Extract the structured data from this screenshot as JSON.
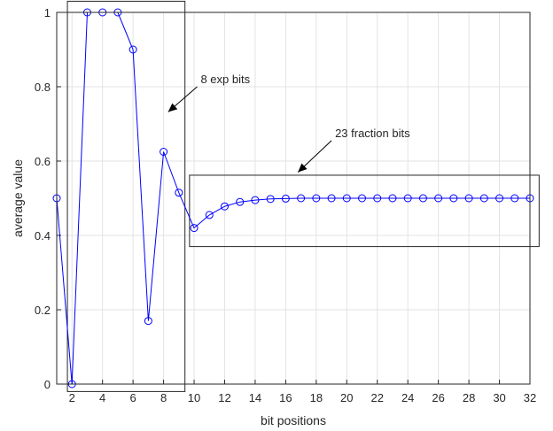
{
  "chart_data": {
    "type": "line",
    "xlabel": "bit positions",
    "ylabel": "average value",
    "xlim": [
      1,
      32
    ],
    "ylim": [
      0,
      1
    ],
    "xticks": [
      2,
      4,
      6,
      8,
      10,
      12,
      14,
      16,
      18,
      20,
      22,
      24,
      26,
      28,
      30,
      32
    ],
    "yticks": [
      0,
      0.2,
      0.4,
      0.6,
      0.8,
      1
    ],
    "grid": true,
    "marker": "circle",
    "line_color": "#0000ff",
    "series": [
      {
        "x": [
          1,
          2,
          3,
          4,
          5,
          6,
          7,
          8,
          9,
          10,
          11,
          12,
          13,
          14,
          15,
          16,
          17,
          18,
          19,
          20,
          21,
          22,
          23,
          24,
          25,
          26,
          27,
          28,
          29,
          30,
          31,
          32
        ],
        "values": [
          0.5,
          0.0,
          1.0,
          1.0,
          1.0,
          0.9,
          0.17,
          0.625,
          0.515,
          0.42,
          0.455,
          0.478,
          0.49,
          0.495,
          0.498,
          0.499,
          0.5,
          0.5,
          0.5,
          0.5,
          0.5,
          0.5,
          0.5,
          0.5,
          0.5,
          0.5,
          0.5,
          0.5,
          0.5,
          0.5,
          0.5,
          0.5
        ]
      }
    ],
    "annotations": [
      {
        "text": "8 exp bits",
        "box": {
          "x0": 1.7,
          "x1": 9.4,
          "y0": -0.02,
          "y1": 1.03
        },
        "arrow": {
          "from": [
            10.2,
            0.8
          ],
          "to": [
            8.3,
            0.732
          ]
        }
      },
      {
        "text": "23 fraction bits",
        "box": {
          "x0": 9.7,
          "x1": 32.6,
          "y0": 0.37,
          "y1": 0.562
        },
        "arrow": {
          "from": [
            19.0,
            0.655
          ],
          "to": [
            16.8,
            0.57
          ]
        }
      }
    ]
  }
}
